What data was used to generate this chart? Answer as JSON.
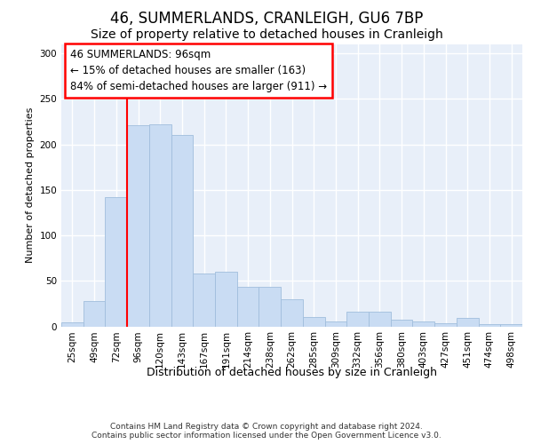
{
  "title1": "46, SUMMERLANDS, CRANLEIGH, GU6 7BP",
  "title2": "Size of property relative to detached houses in Cranleigh",
  "xlabel": "Distribution of detached houses by size in Cranleigh",
  "ylabel": "Number of detached properties",
  "footer1": "Contains HM Land Registry data © Crown copyright and database right 2024.",
  "footer2": "Contains public sector information licensed under the Open Government Licence v3.0.",
  "annotation_line1": "46 SUMMERLANDS: 96sqm",
  "annotation_line2": "← 15% of detached houses are smaller (163)",
  "annotation_line3": "84% of semi-detached houses are larger (911) →",
  "bar_categories": [
    "25sqm",
    "49sqm",
    "72sqm",
    "96sqm",
    "120sqm",
    "143sqm",
    "167sqm",
    "191sqm",
    "214sqm",
    "238sqm",
    "262sqm",
    "285sqm",
    "309sqm",
    "332sqm",
    "356sqm",
    "380sqm",
    "403sqm",
    "427sqm",
    "451sqm",
    "474sqm",
    "498sqm"
  ],
  "bar_values": [
    4,
    28,
    142,
    221,
    222,
    210,
    58,
    60,
    43,
    43,
    30,
    10,
    5,
    16,
    16,
    7,
    5,
    3,
    9,
    2,
    2
  ],
  "bar_color": "#c9dcf3",
  "bar_edgecolor": "#a0bedd",
  "background_color": "#e8eff9",
  "grid_color": "#ffffff",
  "ylim": [
    0,
    310
  ],
  "yticks": [
    0,
    50,
    100,
    150,
    200,
    250,
    300
  ],
  "red_line_index": 3,
  "title1_fontsize": 12,
  "title2_fontsize": 10,
  "ylabel_fontsize": 8,
  "xlabel_fontsize": 9,
  "tick_fontsize": 7.5,
  "footer_fontsize": 6.5,
  "annotation_fontsize": 8.5
}
